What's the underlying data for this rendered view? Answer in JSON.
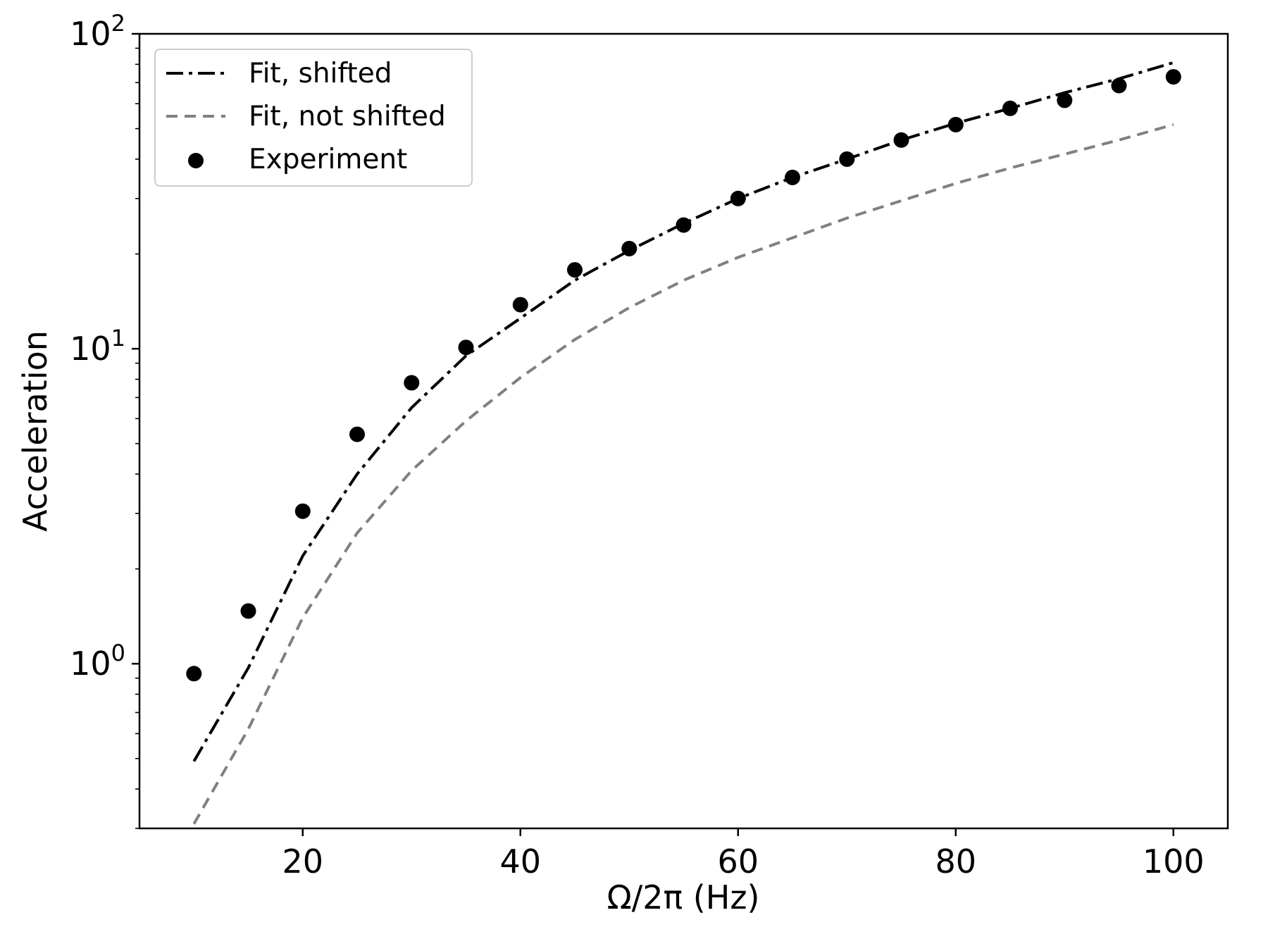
{
  "chart_data": {
    "type": "line",
    "title": "",
    "xlabel": "Ω/2π (Hz)",
    "ylabel": "Acceleration",
    "xlim": [
      5,
      105
    ],
    "ylim": [
      0.3,
      100
    ],
    "yscale": "log",
    "grid": false,
    "legend_position": "top-left",
    "x_ticks": [
      {
        "value": 20,
        "label": "20"
      },
      {
        "value": 40,
        "label": "40"
      },
      {
        "value": 60,
        "label": "60"
      },
      {
        "value": 80,
        "label": "80"
      },
      {
        "value": 100,
        "label": "100"
      }
    ],
    "y_ticks": [
      {
        "value": 1,
        "base": "10",
        "exp": "0"
      },
      {
        "value": 10,
        "base": "10",
        "exp": "1"
      },
      {
        "value": 100,
        "base": "10",
        "exp": "2"
      }
    ],
    "x": [
      10,
      15,
      20,
      25,
      30,
      35,
      40,
      45,
      50,
      55,
      60,
      65,
      70,
      75,
      80,
      85,
      90,
      95,
      100
    ],
    "series": [
      {
        "name": "Fit, shifted",
        "kind": "line",
        "style": "dashdot",
        "color": "#000000",
        "values": [
          0.49,
          0.97,
          2.2,
          4.0,
          6.5,
          9.5,
          12.5,
          16.5,
          20.5,
          25.0,
          30.0,
          35.0,
          40.0,
          46.0,
          52.0,
          58.0,
          65.0,
          72.0,
          81.0
        ]
      },
      {
        "name": "Fit, not shifted",
        "kind": "line",
        "style": "dashed",
        "color": "#808080",
        "values": [
          0.31,
          0.62,
          1.4,
          2.6,
          4.1,
          5.9,
          8.1,
          10.7,
          13.5,
          16.5,
          19.5,
          22.5,
          26.0,
          29.5,
          33.5,
          37.5,
          41.5,
          46.0,
          51.5
        ]
      },
      {
        "name": "Experiment",
        "kind": "scatter",
        "color": "#000000",
        "values": [
          0.93,
          1.47,
          3.05,
          5.35,
          7.8,
          10.1,
          13.8,
          17.8,
          20.8,
          24.7,
          30.0,
          35.0,
          40.0,
          46.0,
          51.5,
          58.0,
          61.5,
          68.5,
          73.0
        ]
      }
    ]
  }
}
